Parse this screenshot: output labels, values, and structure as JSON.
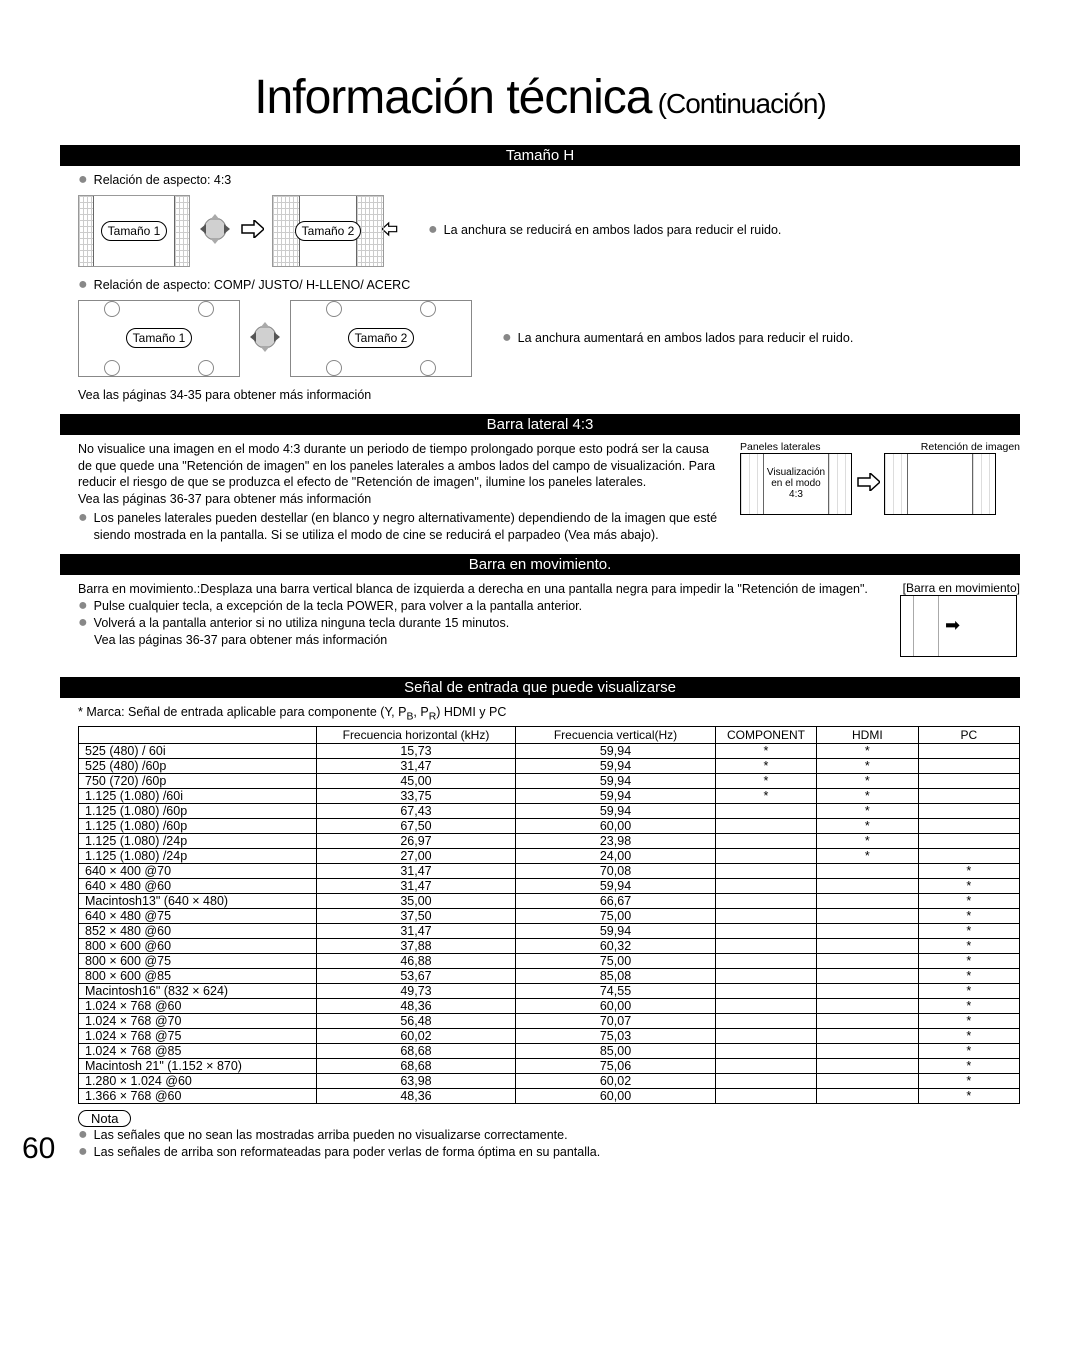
{
  "title_main": "Información técnica",
  "title_cont": "(Continuación)",
  "section_tamano_h": "Tamaño H",
  "aspect_43": "Relación de aspecto: 4:3",
  "tamano1": "Tamaño 1",
  "tamano2": "Tamaño 2",
  "tamano_h_note1": "La anchura se reducirá en ambos lados para reducir el ruido.",
  "aspect_other": "Relación de aspecto: COMP/ JUSTO/ H-LLENO/ ACERC",
  "tamano_h_note2": "La anchura aumentará en ambos lados para reducir el ruido.",
  "see_pages_34": "Vea las páginas 34-35 para obtener más información",
  "section_barra_lateral": "Barra lateral 4:3",
  "barra_lat_body": "No visualice una imagen en el modo 4:3 durante un periodo de tiempo prolongado porque esto podrá ser la causa de que quede una \"Retención de imagen\" en los paneles laterales a ambos lados del campo de visualización. Para reducir el riesgo de que se produzca el efecto de \"Retención de imagen\", ilumine los paneles laterales.",
  "see_pages_36a": "Vea las páginas 36-37 para obtener más información",
  "barra_lat_bullet": "Los paneles laterales pueden destellar (en blanco y negro alternativamente) dependiendo de la imagen que esté siendo mostrada en la pantalla. Si se utiliza el modo de cine se reducirá el parpadeo (Vea más abajo).",
  "lbl_paneles": "Paneles laterales",
  "lbl_retencion": "Retención de imagen",
  "lbl_vis43": "Visualización en el modo 4:3",
  "section_barra_mov": "Barra en movimiento.",
  "barra_mov_body": "Barra en movimiento.:Desplaza una barra vertical blanca de izquierda a derecha en una pantalla negra para impedir la \"Retención de imagen\".",
  "barra_mov_b1": "Pulse cualquier tecla, a excepción de la tecla POWER, para volver a la pantalla anterior.",
  "barra_mov_b2": "Volverá a la pantalla anterior si no utiliza ninguna tecla durante 15 minutos.",
  "see_pages_36b": "Vea las páginas 36-37 para obtener más información",
  "lbl_barra_mov_box": "[Barra en movimiento]",
  "section_signal": "Señal de entrada que puede visualizarse",
  "signal_intro": "* Marca: Señal de entrada aplicable para componente (Y, PB, PR) HDMI y PC",
  "col_name": "",
  "col_h": "Frecuencia horizontal (kHz)",
  "col_v": "Frecuencia vertical(Hz)",
  "col_comp": "COMPONENT",
  "col_hdmi": "HDMI",
  "col_pc": "PC",
  "rows": [
    {
      "n": "525 (480) / 60i",
      "h": "15,73",
      "v": "59,94",
      "c": "*",
      "hd": "*",
      "p": ""
    },
    {
      "n": "525 (480) /60p",
      "h": "31,47",
      "v": "59,94",
      "c": "*",
      "hd": "*",
      "p": ""
    },
    {
      "n": "750 (720) /60p",
      "h": "45,00",
      "v": "59,94",
      "c": "*",
      "hd": "*",
      "p": ""
    },
    {
      "n": "1.125 (1.080) /60i",
      "h": "33,75",
      "v": "59,94",
      "c": "*",
      "hd": "*",
      "p": ""
    },
    {
      "n": "1.125 (1.080) /60p",
      "h": "67,43",
      "v": "59,94",
      "c": "",
      "hd": "*",
      "p": ""
    },
    {
      "n": "1.125 (1.080) /60p",
      "h": "67,50",
      "v": "60,00",
      "c": "",
      "hd": "*",
      "p": ""
    },
    {
      "n": "1.125 (1.080) /24p",
      "h": "26,97",
      "v": "23,98",
      "c": "",
      "hd": "*",
      "p": ""
    },
    {
      "n": "1.125 (1.080) /24p",
      "h": "27,00",
      "v": "24,00",
      "c": "",
      "hd": "*",
      "p": ""
    },
    {
      "n": "640 × 400 @70",
      "h": "31,47",
      "v": "70,08",
      "c": "",
      "hd": "",
      "p": "*"
    },
    {
      "n": "640 × 480 @60",
      "h": "31,47",
      "v": "59,94",
      "c": "",
      "hd": "",
      "p": "*"
    },
    {
      "n": "Macintosh13\" (640 × 480)",
      "h": "35,00",
      "v": "66,67",
      "c": "",
      "hd": "",
      "p": "*"
    },
    {
      "n": "640 × 480 @75",
      "h": "37,50",
      "v": "75,00",
      "c": "",
      "hd": "",
      "p": "*"
    },
    {
      "n": "852 × 480 @60",
      "h": "31,47",
      "v": "59,94",
      "c": "",
      "hd": "",
      "p": "*"
    },
    {
      "n": "800 × 600 @60",
      "h": "37,88",
      "v": "60,32",
      "c": "",
      "hd": "",
      "p": "*"
    },
    {
      "n": "800 × 600 @75",
      "h": "46,88",
      "v": "75,00",
      "c": "",
      "hd": "",
      "p": "*"
    },
    {
      "n": "800 × 600 @85",
      "h": "53,67",
      "v": "85,08",
      "c": "",
      "hd": "",
      "p": "*"
    },
    {
      "n": "Macintosh16\" (832 × 624)",
      "h": "49,73",
      "v": "74,55",
      "c": "",
      "hd": "",
      "p": "*"
    },
    {
      "n": "1.024 × 768 @60",
      "h": "48,36",
      "v": "60,00",
      "c": "",
      "hd": "",
      "p": "*"
    },
    {
      "n": "1.024 × 768 @70",
      "h": "56,48",
      "v": "70,07",
      "c": "",
      "hd": "",
      "p": "*"
    },
    {
      "n": "1.024 × 768 @75",
      "h": "60,02",
      "v": "75,03",
      "c": "",
      "hd": "",
      "p": "*"
    },
    {
      "n": "1.024 × 768 @85",
      "h": "68,68",
      "v": "85,00",
      "c": "",
      "hd": "",
      "p": "*"
    },
    {
      "n": "Macintosh 21\" (1.152 × 870)",
      "h": "68,68",
      "v": "75,06",
      "c": "",
      "hd": "",
      "p": "*"
    },
    {
      "n": "1.280 × 1.024 @60",
      "h": "63,98",
      "v": "60,02",
      "c": "",
      "hd": "",
      "p": "*"
    },
    {
      "n": "1.366 × 768 @60",
      "h": "48,36",
      "v": "60,00",
      "c": "",
      "hd": "",
      "p": "*"
    }
  ],
  "nota_label": "Nota",
  "nota1": "Las señales que no sean las mostradas arriba pueden no visualizarse correctamente.",
  "nota2": "Las señales de arriba son reformateadas para poder verlas de forma óptima en su pantalla.",
  "page_number": "60"
}
